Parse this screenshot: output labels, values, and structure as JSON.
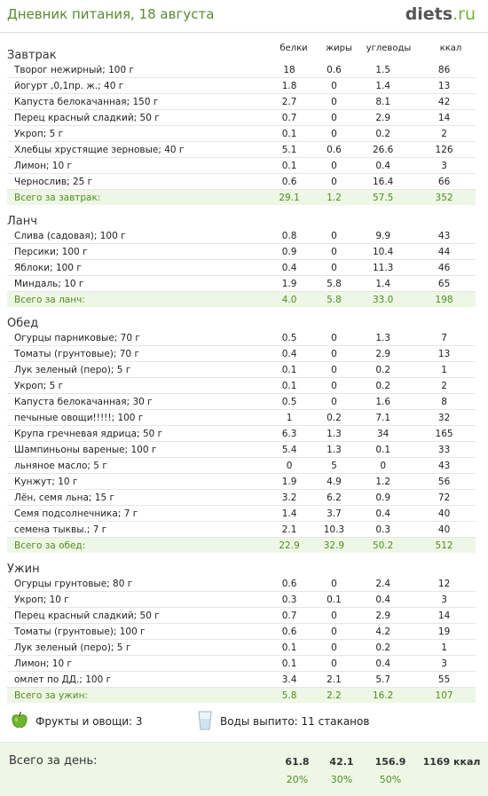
{
  "title": "Дневник питания, 18 августа",
  "logo": {
    "main": "diets",
    "suffix": ".ru"
  },
  "columns": {
    "proteins": "белки",
    "fats": "жиры",
    "carbs": "углеводы",
    "kcal": "ккал"
  },
  "meals": [
    {
      "name": "Завтрак",
      "items": [
        [
          "Творог нежирный; 100 г",
          "18",
          "0.6",
          "1.5",
          "86"
        ],
        [
          "йогурт ,0,1пр. ж.; 40 г",
          "1.8",
          "0",
          "1.4",
          "13"
        ],
        [
          "Капуста белокачанная; 150 г",
          "2.7",
          "0",
          "8.1",
          "42"
        ],
        [
          "Перец красный сладкий; 50 г",
          "0.7",
          "0",
          "2.9",
          "14"
        ],
        [
          "Укроп; 5 г",
          "0.1",
          "0",
          "0.2",
          "2"
        ],
        [
          "Хлебцы хрустящие зерновые; 40 г",
          "5.1",
          "0.6",
          "26.6",
          "126"
        ],
        [
          "Лимон; 10 г",
          "0.1",
          "0",
          "0.4",
          "3"
        ],
        [
          "Чернослив; 25 г",
          "0.6",
          "0",
          "16.4",
          "66"
        ]
      ],
      "total": [
        "Всего за завтрак:",
        "29.1",
        "1.2",
        "57.5",
        "352"
      ]
    },
    {
      "name": "Ланч",
      "items": [
        [
          "Слива (садовая); 100 г",
          "0.8",
          "0",
          "9.9",
          "43"
        ],
        [
          "Персики; 100 г",
          "0.9",
          "0",
          "10.4",
          "44"
        ],
        [
          "Яблоки; 100 г",
          "0.4",
          "0",
          "11.3",
          "46"
        ],
        [
          "Миндаль; 10 г",
          "1.9",
          "5.8",
          "1.4",
          "65"
        ]
      ],
      "total": [
        "Всего за ланч:",
        "4.0",
        "5.8",
        "33.0",
        "198"
      ]
    },
    {
      "name": "Обед",
      "items": [
        [
          "Огурцы парниковые; 70 г",
          "0.5",
          "0",
          "1.3",
          "7"
        ],
        [
          "Томаты (грунтовые); 70 г",
          "0.4",
          "0",
          "2.9",
          "13"
        ],
        [
          "Лук зеленый (перо); 5 г",
          "0.1",
          "0",
          "0.2",
          "1"
        ],
        [
          "Укроп; 5 г",
          "0.1",
          "0",
          "0.2",
          "2"
        ],
        [
          "Капуста белокачанная; 30 г",
          "0.5",
          "0",
          "1.6",
          "8"
        ],
        [
          "печыные  овощи!!!!!; 100 г",
          "1",
          "0.2",
          "7.1",
          "32"
        ],
        [
          "Крупа гречневая ядрица; 50 г",
          "6.3",
          "1.3",
          "34",
          "165"
        ],
        [
          "Шампиньоны вареные; 100 г",
          "5.4",
          "1.3",
          "0.1",
          "33"
        ],
        [
          "льняное масло; 5 г",
          "0",
          "5",
          "0",
          "43"
        ],
        [
          "Кунжут; 10 г",
          "1.9",
          "4.9",
          "1.2",
          "56"
        ],
        [
          "Лён, семя льна; 15 г",
          "3.2",
          "6.2",
          "0.9",
          "72"
        ],
        [
          "Семя подсолнечника; 7 г",
          "1.4",
          "3.7",
          "0.4",
          "40"
        ],
        [
          "семена тыквы.; 7 г",
          "2.1",
          "10.3",
          "0.3",
          "40"
        ]
      ],
      "total": [
        "Всего за обед:",
        "22.9",
        "32.9",
        "50.2",
        "512"
      ]
    },
    {
      "name": "Ужин",
      "items": [
        [
          "Огурцы грунтовые; 80 г",
          "0.6",
          "0",
          "2.4",
          "12"
        ],
        [
          "Укроп; 10 г",
          "0.3",
          "0.1",
          "0.4",
          "3"
        ],
        [
          "Перец красный сладкий; 50 г",
          "0.7",
          "0",
          "2.9",
          "14"
        ],
        [
          "Томаты (грунтовые); 100 г",
          "0.6",
          "0",
          "4.2",
          "19"
        ],
        [
          "Лук зеленый (перо); 5 г",
          "0.1",
          "0",
          "0.2",
          "1"
        ],
        [
          "Лимон; 10 г",
          "0.1",
          "0",
          "0.4",
          "3"
        ],
        [
          "омлет по ДД.; 100 г",
          "3.4",
          "2.1",
          "5.7",
          "55"
        ]
      ],
      "total": [
        "Всего за ужин:",
        "5.8",
        "2.2",
        "16.2",
        "107"
      ]
    }
  ],
  "extras": {
    "fruits": "Фрукты и овощи: 3",
    "water": "Воды выпито: 11 стаканов"
  },
  "day": {
    "label": "Всего за день:",
    "proteins": "61.8",
    "fats": "42.1",
    "carbs": "156.9",
    "kcal": "1169 ккал",
    "pct_proteins": "20%",
    "pct_fats": "30%",
    "pct_carbs": "50%"
  },
  "colors": {
    "accent": "#5a8a32",
    "total_bg": "#eef7e6",
    "total_text": "#4f8e1e"
  },
  "icons": {
    "fruits": "green-apple-icon",
    "water": "water-glass-icon"
  }
}
